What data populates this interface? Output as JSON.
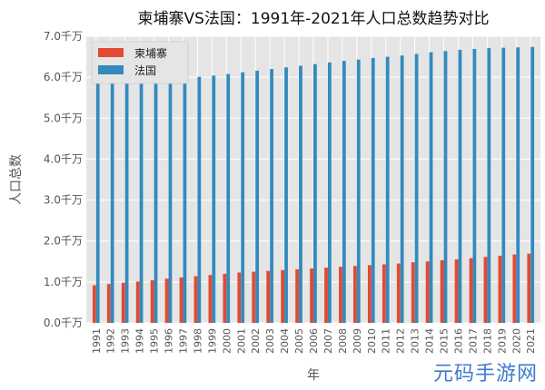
{
  "chart_data": {
    "type": "bar",
    "title": "柬埔寨VS法国：1991年-2021年人口总数趋势对比",
    "xlabel": "年",
    "ylabel": "人口总数",
    "ylim": [
      0,
      7
    ],
    "y_ticks": [
      0,
      1,
      2,
      3,
      4,
      5,
      6,
      7
    ],
    "y_tick_labels": [
      "0.0千万",
      "1.0千万",
      "2.0千万",
      "3.0千万",
      "4.0千万",
      "5.0千万",
      "6.0千万",
      "7.0千万"
    ],
    "grid": true,
    "legend_position": "top-left",
    "categories": [
      "1991",
      "1992",
      "1993",
      "1994",
      "1995",
      "1996",
      "1997",
      "1998",
      "1999",
      "2000",
      "2001",
      "2002",
      "2003",
      "2004",
      "2005",
      "2006",
      "2007",
      "2008",
      "2009",
      "2010",
      "2011",
      "2012",
      "2013",
      "2014",
      "2015",
      "2016",
      "2017",
      "2018",
      "2019",
      "2020",
      "2021"
    ],
    "series": [
      {
        "name": "柬埔寨",
        "color": "#e24a33",
        "values": [
          0.92,
          0.95,
          0.98,
          1.01,
          1.04,
          1.08,
          1.11,
          1.14,
          1.17,
          1.2,
          1.23,
          1.25,
          1.27,
          1.29,
          1.31,
          1.33,
          1.35,
          1.37,
          1.39,
          1.41,
          1.43,
          1.45,
          1.48,
          1.5,
          1.53,
          1.55,
          1.58,
          1.61,
          1.64,
          1.67,
          1.69
        ]
      },
      {
        "name": "法国",
        "color": "#348abd",
        "values": [
          5.86,
          5.88,
          5.9,
          5.91,
          5.93,
          5.95,
          5.98,
          6.01,
          6.04,
          6.08,
          6.12,
          6.16,
          6.2,
          6.24,
          6.28,
          6.32,
          6.36,
          6.4,
          6.43,
          6.47,
          6.5,
          6.53,
          6.57,
          6.61,
          6.64,
          6.67,
          6.69,
          6.71,
          6.72,
          6.73,
          6.74
        ]
      }
    ]
  },
  "watermark": "元码手游网"
}
